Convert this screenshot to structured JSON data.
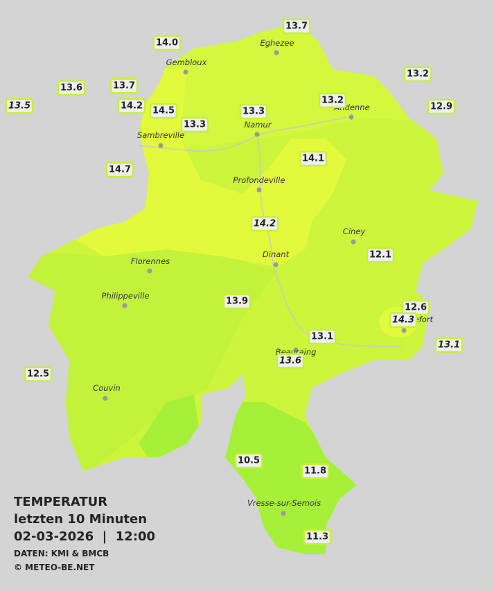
{
  "legend": {
    "title": "TEMPERATUR",
    "period": "letzten 10 Minuten",
    "datetime": "02-03-2026  |  12:00",
    "source": "DATEN: KMI & BMCB",
    "copyright": "© METEO-BE.NET"
  },
  "stations": [
    {
      "value": "13.7",
      "italic": false
    },
    {
      "value": "14.0",
      "italic": false
    },
    {
      "value": "13.2",
      "italic": false
    },
    {
      "value": "13.6",
      "italic": false
    },
    {
      "value": "13.7",
      "italic": false
    },
    {
      "value": "13.5",
      "italic": true
    },
    {
      "value": "14.2",
      "italic": false
    },
    {
      "value": "14.5",
      "italic": false
    },
    {
      "value": "13.3",
      "italic": false
    },
    {
      "value": "13.2",
      "italic": false
    },
    {
      "value": "12.9",
      "italic": false
    },
    {
      "value": "13.3",
      "italic": false
    },
    {
      "value": "14.1",
      "italic": false
    },
    {
      "value": "14.7",
      "italic": false
    },
    {
      "value": "14.2",
      "italic": true
    },
    {
      "value": "12.1",
      "italic": false
    },
    {
      "value": "13.9",
      "italic": false
    },
    {
      "value": "12.6",
      "italic": false
    },
    {
      "value": "14.3",
      "italic": true
    },
    {
      "value": "13.1",
      "italic": false
    },
    {
      "value": "13.1",
      "italic": true
    },
    {
      "value": "13.6",
      "italic": true
    },
    {
      "value": "12.5",
      "italic": false
    },
    {
      "value": "10.5",
      "italic": false
    },
    {
      "value": "11.8",
      "italic": false
    },
    {
      "value": "11.3",
      "italic": false
    }
  ],
  "cities": [
    "Eghezee",
    "Gembloux",
    "Andenne",
    "Namur",
    "Sambreville",
    "Profondeville",
    "Ciney",
    "Dinant",
    "Florennes",
    "Philippeville",
    "Rochefort",
    "Beauraing",
    "Couvin",
    "Vresse-sur-Semois"
  ]
}
